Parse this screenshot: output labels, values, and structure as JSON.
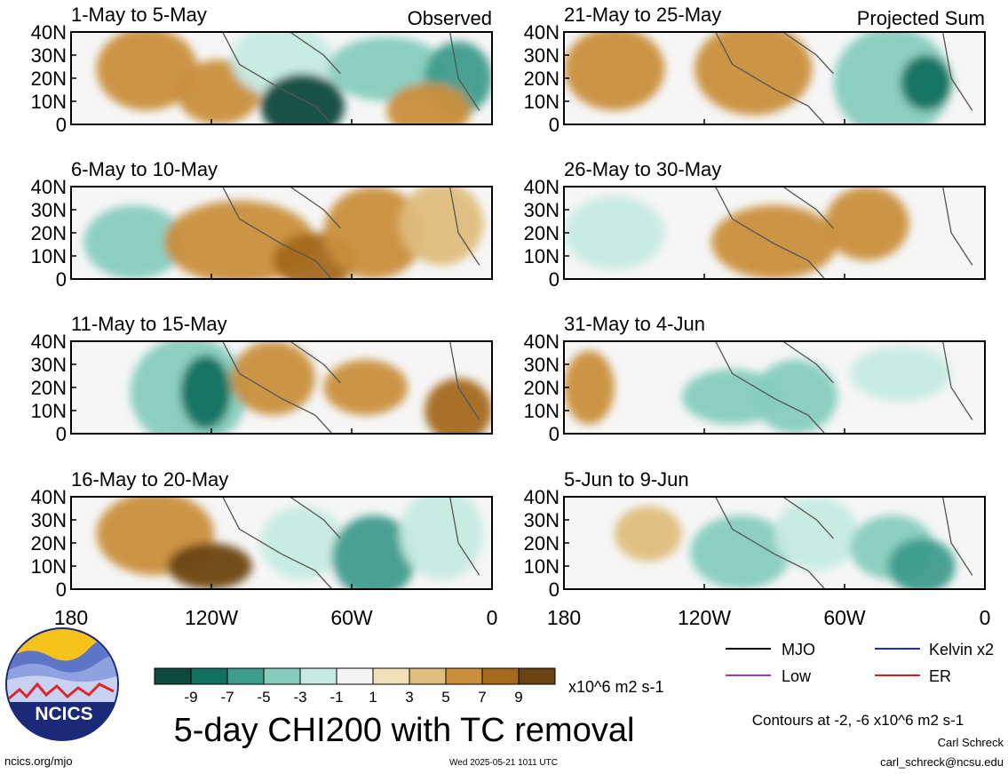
{
  "chart_data": {
    "type": "map-panels",
    "title": "5-day CHI200 with TC removal",
    "longitude_ticks": [
      "180",
      "120W",
      "60W",
      "0"
    ],
    "latitude_ticks": [
      "40N",
      "30N",
      "20N",
      "10N",
      "0"
    ],
    "columns": [
      {
        "label": "Observed",
        "panels": [
          "1-May to 5-May",
          "6-May to 10-May",
          "11-May to 15-May",
          "16-May to 20-May"
        ]
      },
      {
        "label": "Projected Sum",
        "panels": [
          "21-May to 25-May",
          "26-May to 30-May",
          "31-May to 4-Jun",
          "5-Jun to 9-Jun"
        ]
      }
    ],
    "colorbar": {
      "ticks": [
        "-9",
        "-7",
        "-5",
        "-3",
        "-1",
        "1",
        "3",
        "5",
        "7",
        "9"
      ],
      "colors": [
        "#0b4a3d",
        "#11705f",
        "#3e9c8c",
        "#86cdbd",
        "#c6ebe2",
        "#f4f4f4",
        "#f2e1b8",
        "#dfbd7c",
        "#c98f3c",
        "#a4691d",
        "#6c4310"
      ],
      "units": "x10^6 m2 s-1"
    },
    "contour_legend": [
      {
        "label": "MJO",
        "color": "#000000"
      },
      {
        "label": "Kelvin x2",
        "color": "#1d2bd6"
      },
      {
        "label": "Low",
        "color": "#9a38d8"
      },
      {
        "label": "ER",
        "color": "#dd1a1a"
      }
    ],
    "contour_note": "Contours at -2, -6 x10^6 m2 s-1"
  },
  "footer": {
    "logo_text": "NCICS",
    "site": "ncics.org/mjo",
    "timestamp": "Wed 2025-05-21 1011 UTC",
    "author": "Carl Schreck",
    "email": "carl_schreck@ncsu.edu"
  }
}
